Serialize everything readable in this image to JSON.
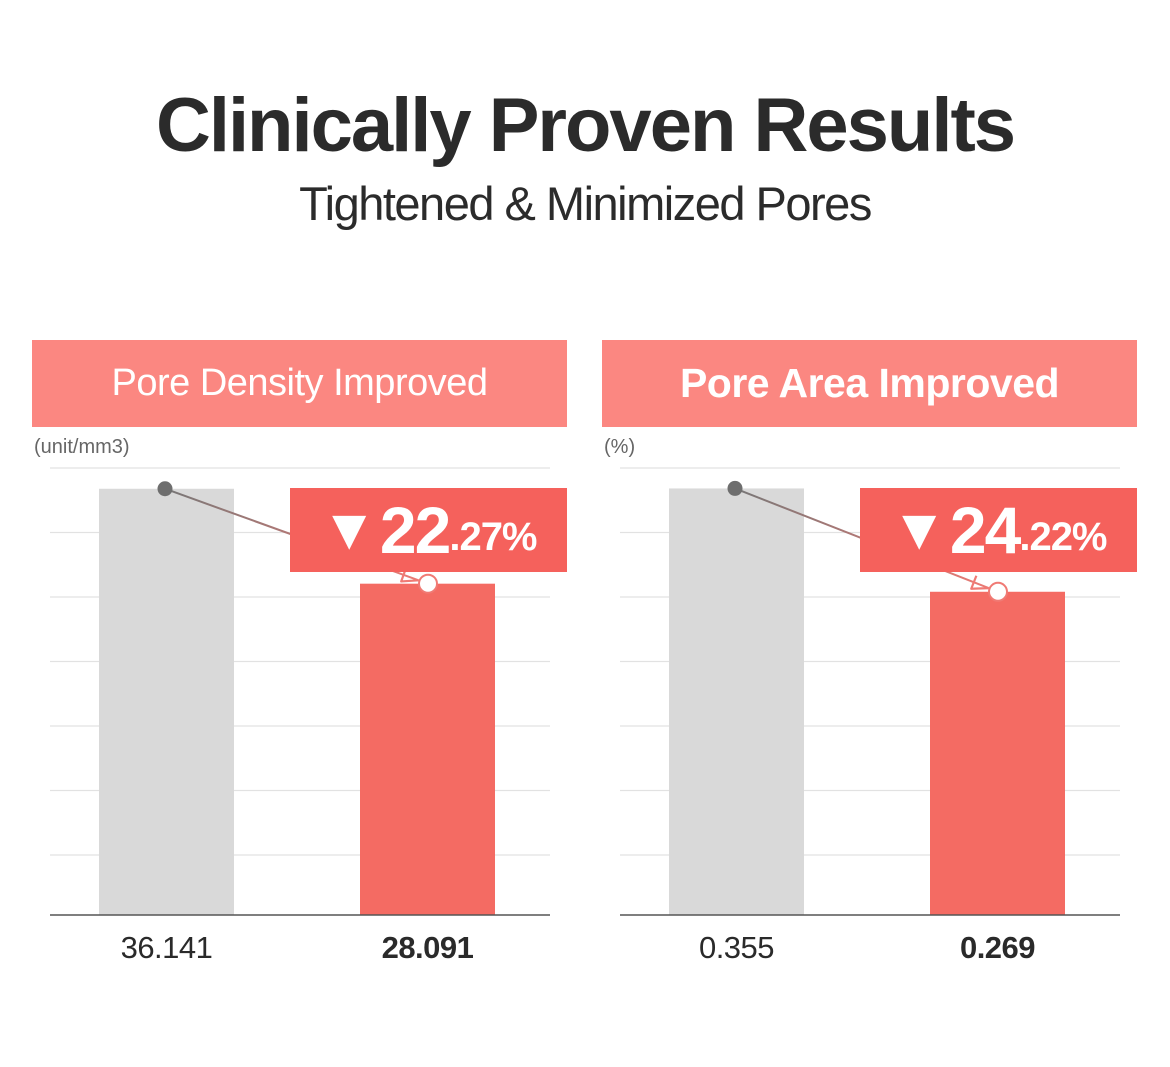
{
  "page": {
    "title": "Clinically Proven Results",
    "subtitle": "Tightened & Minimized Pores"
  },
  "colors": {
    "header_bg": "#fb8781",
    "before_bar": "#d9d9d9",
    "after_bar": "#f46b63",
    "badge_bg": "#f5615c",
    "arrow": "#f07a74"
  },
  "chart_data": [
    {
      "type": "bar",
      "title": "Pore Density Improved",
      "ylabel": "(unit/mm3)",
      "categories": [
        "",
        ""
      ],
      "values": [
        36.141,
        28.091
      ],
      "value_labels": [
        "36.141",
        "28.091"
      ],
      "ylim": [
        0,
        37.9
      ],
      "grid": true,
      "annotation": {
        "icon": "down-triangle-icon",
        "symbol": "▼",
        "int_part": "22",
        "dec_part": ".27%"
      }
    },
    {
      "type": "bar",
      "title": "Pore Area Improved",
      "ylabel": "(%)",
      "categories": [
        "",
        ""
      ],
      "values": [
        0.355,
        0.269
      ],
      "value_labels": [
        "0.355",
        "0.269"
      ],
      "ylim": [
        0,
        0.372
      ],
      "grid": true,
      "annotation": {
        "icon": "down-triangle-icon",
        "symbol": "▼",
        "int_part": "24",
        "dec_part": ".22%"
      }
    }
  ]
}
